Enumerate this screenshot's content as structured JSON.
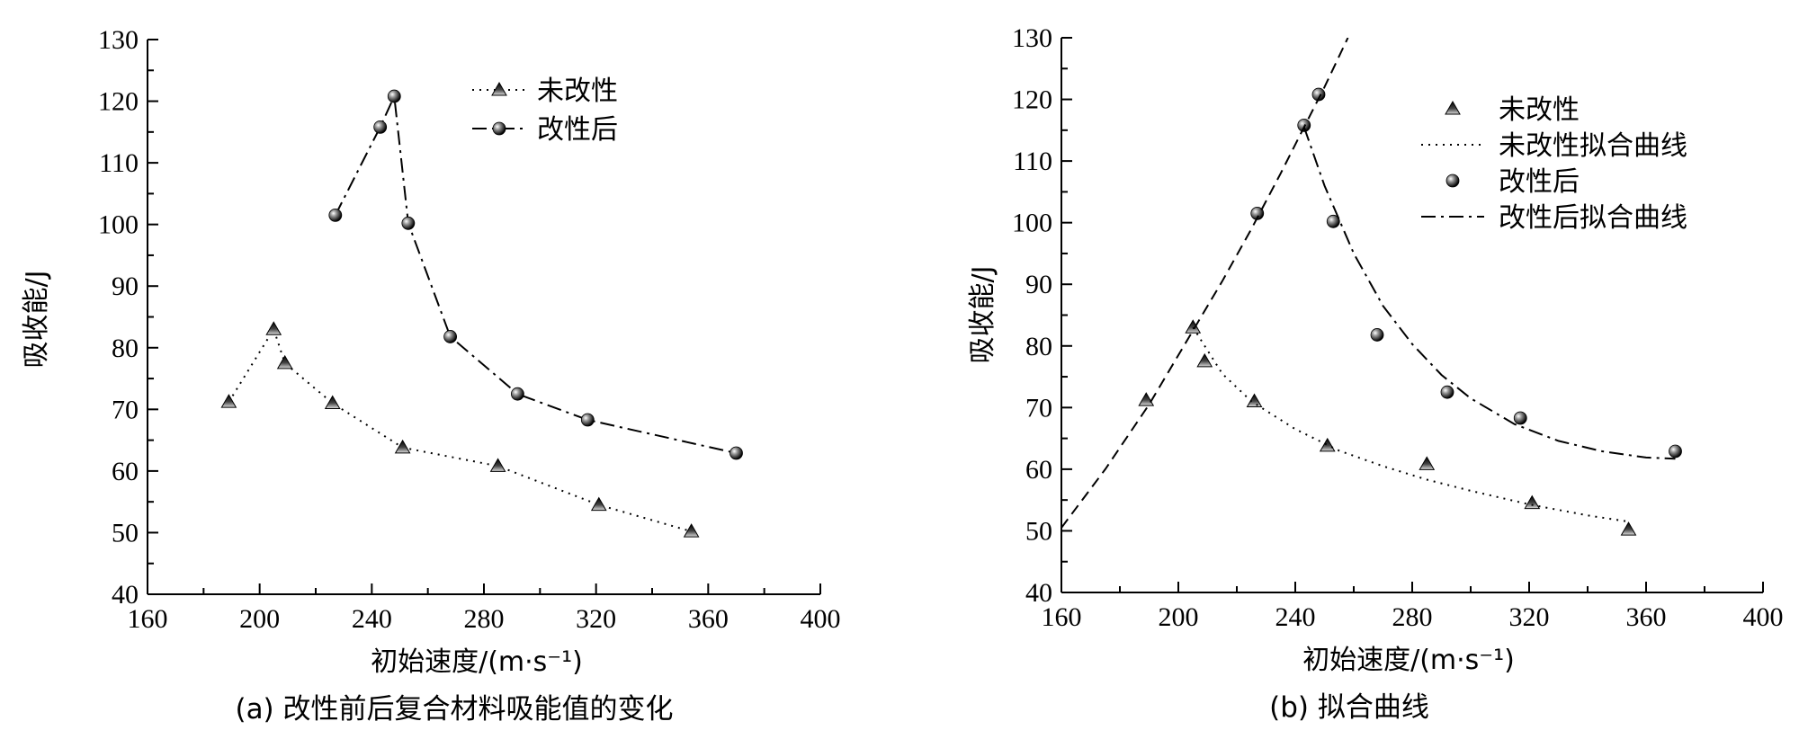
{
  "chart_data": [
    {
      "id": "a",
      "type": "line",
      "caption": "(a) 改性前后复合材料吸能值的变化",
      "xlabel": "初始速度/(m·s⁻¹)",
      "ylabel": "吸收能/J",
      "xlim": [
        160,
        400
      ],
      "ylim": [
        40,
        130
      ],
      "xticks": [
        160,
        200,
        240,
        280,
        320,
        360,
        400
      ],
      "yticks": [
        40,
        50,
        60,
        70,
        80,
        90,
        100,
        110,
        120,
        130
      ],
      "legend_position": "top-center",
      "series": [
        {
          "name": "未改性",
          "marker": "triangle",
          "line": "dotted",
          "x": [
            189,
            205,
            209,
            226,
            251,
            285,
            321,
            354
          ],
          "y": [
            71.2,
            83,
            77.5,
            71,
            63.8,
            60.8,
            54.5,
            50.2
          ]
        },
        {
          "name": "改性后",
          "marker": "sphere",
          "line": "dash-dot",
          "x": [
            227,
            243,
            248,
            253,
            268,
            292,
            317,
            370
          ],
          "y": [
            101.5,
            115.8,
            120.8,
            100.2,
            81.8,
            72.5,
            68.3,
            62.9
          ]
        }
      ]
    },
    {
      "id": "b",
      "type": "scatter",
      "caption": "(b) 拟合曲线",
      "xlabel": "初始速度/(m·s⁻¹)",
      "ylabel": "吸收能/J",
      "xlim": [
        160,
        400
      ],
      "ylim": [
        40,
        130
      ],
      "xticks": [
        160,
        200,
        240,
        280,
        320,
        360,
        400
      ],
      "yticks": [
        40,
        50,
        60,
        70,
        80,
        90,
        100,
        110,
        120,
        130
      ],
      "legend_position": "top-right",
      "series": [
        {
          "name": "未改性",
          "marker": "triangle",
          "x": [
            189,
            205,
            209,
            226,
            251,
            285,
            321,
            354
          ],
          "y": [
            71.2,
            83,
            77.5,
            71,
            63.8,
            60.8,
            54.5,
            50.2
          ]
        },
        {
          "name": "未改性拟合曲线",
          "line": "dotted",
          "x": [
            205,
            215,
            225,
            240,
            255,
            270,
            285,
            300,
            320,
            340,
            354
          ],
          "y": [
            83,
            75.5,
            71,
            66.5,
            63,
            60.5,
            58.3,
            56.5,
            54.3,
            52.5,
            51.5
          ]
        },
        {
          "name": "改性后",
          "marker": "sphere",
          "x": [
            227,
            243,
            248,
            253,
            268,
            292,
            317,
            370
          ],
          "y": [
            101.5,
            115.8,
            120.8,
            100.2,
            81.8,
            72.5,
            68.3,
            62.9
          ]
        },
        {
          "name": "改性后拟合曲线",
          "line": "dash-dot",
          "x": [
            243,
            250,
            260,
            270,
            280,
            290,
            300,
            315,
            330,
            345,
            360,
            370
          ],
          "y": [
            115.5,
            106,
            95,
            86.5,
            80.3,
            75.3,
            71.5,
            67.3,
            64.6,
            62.9,
            61.9,
            61.7
          ]
        },
        {
          "name": "",
          "line": "dashed",
          "x": [
            160,
            175,
            190,
            205,
            215,
            225,
            235,
            243,
            250,
            258
          ],
          "y": [
            50.5,
            60,
            70.5,
            82.5,
            90.5,
            99,
            108,
            115.5,
            122,
            130
          ]
        }
      ]
    }
  ]
}
